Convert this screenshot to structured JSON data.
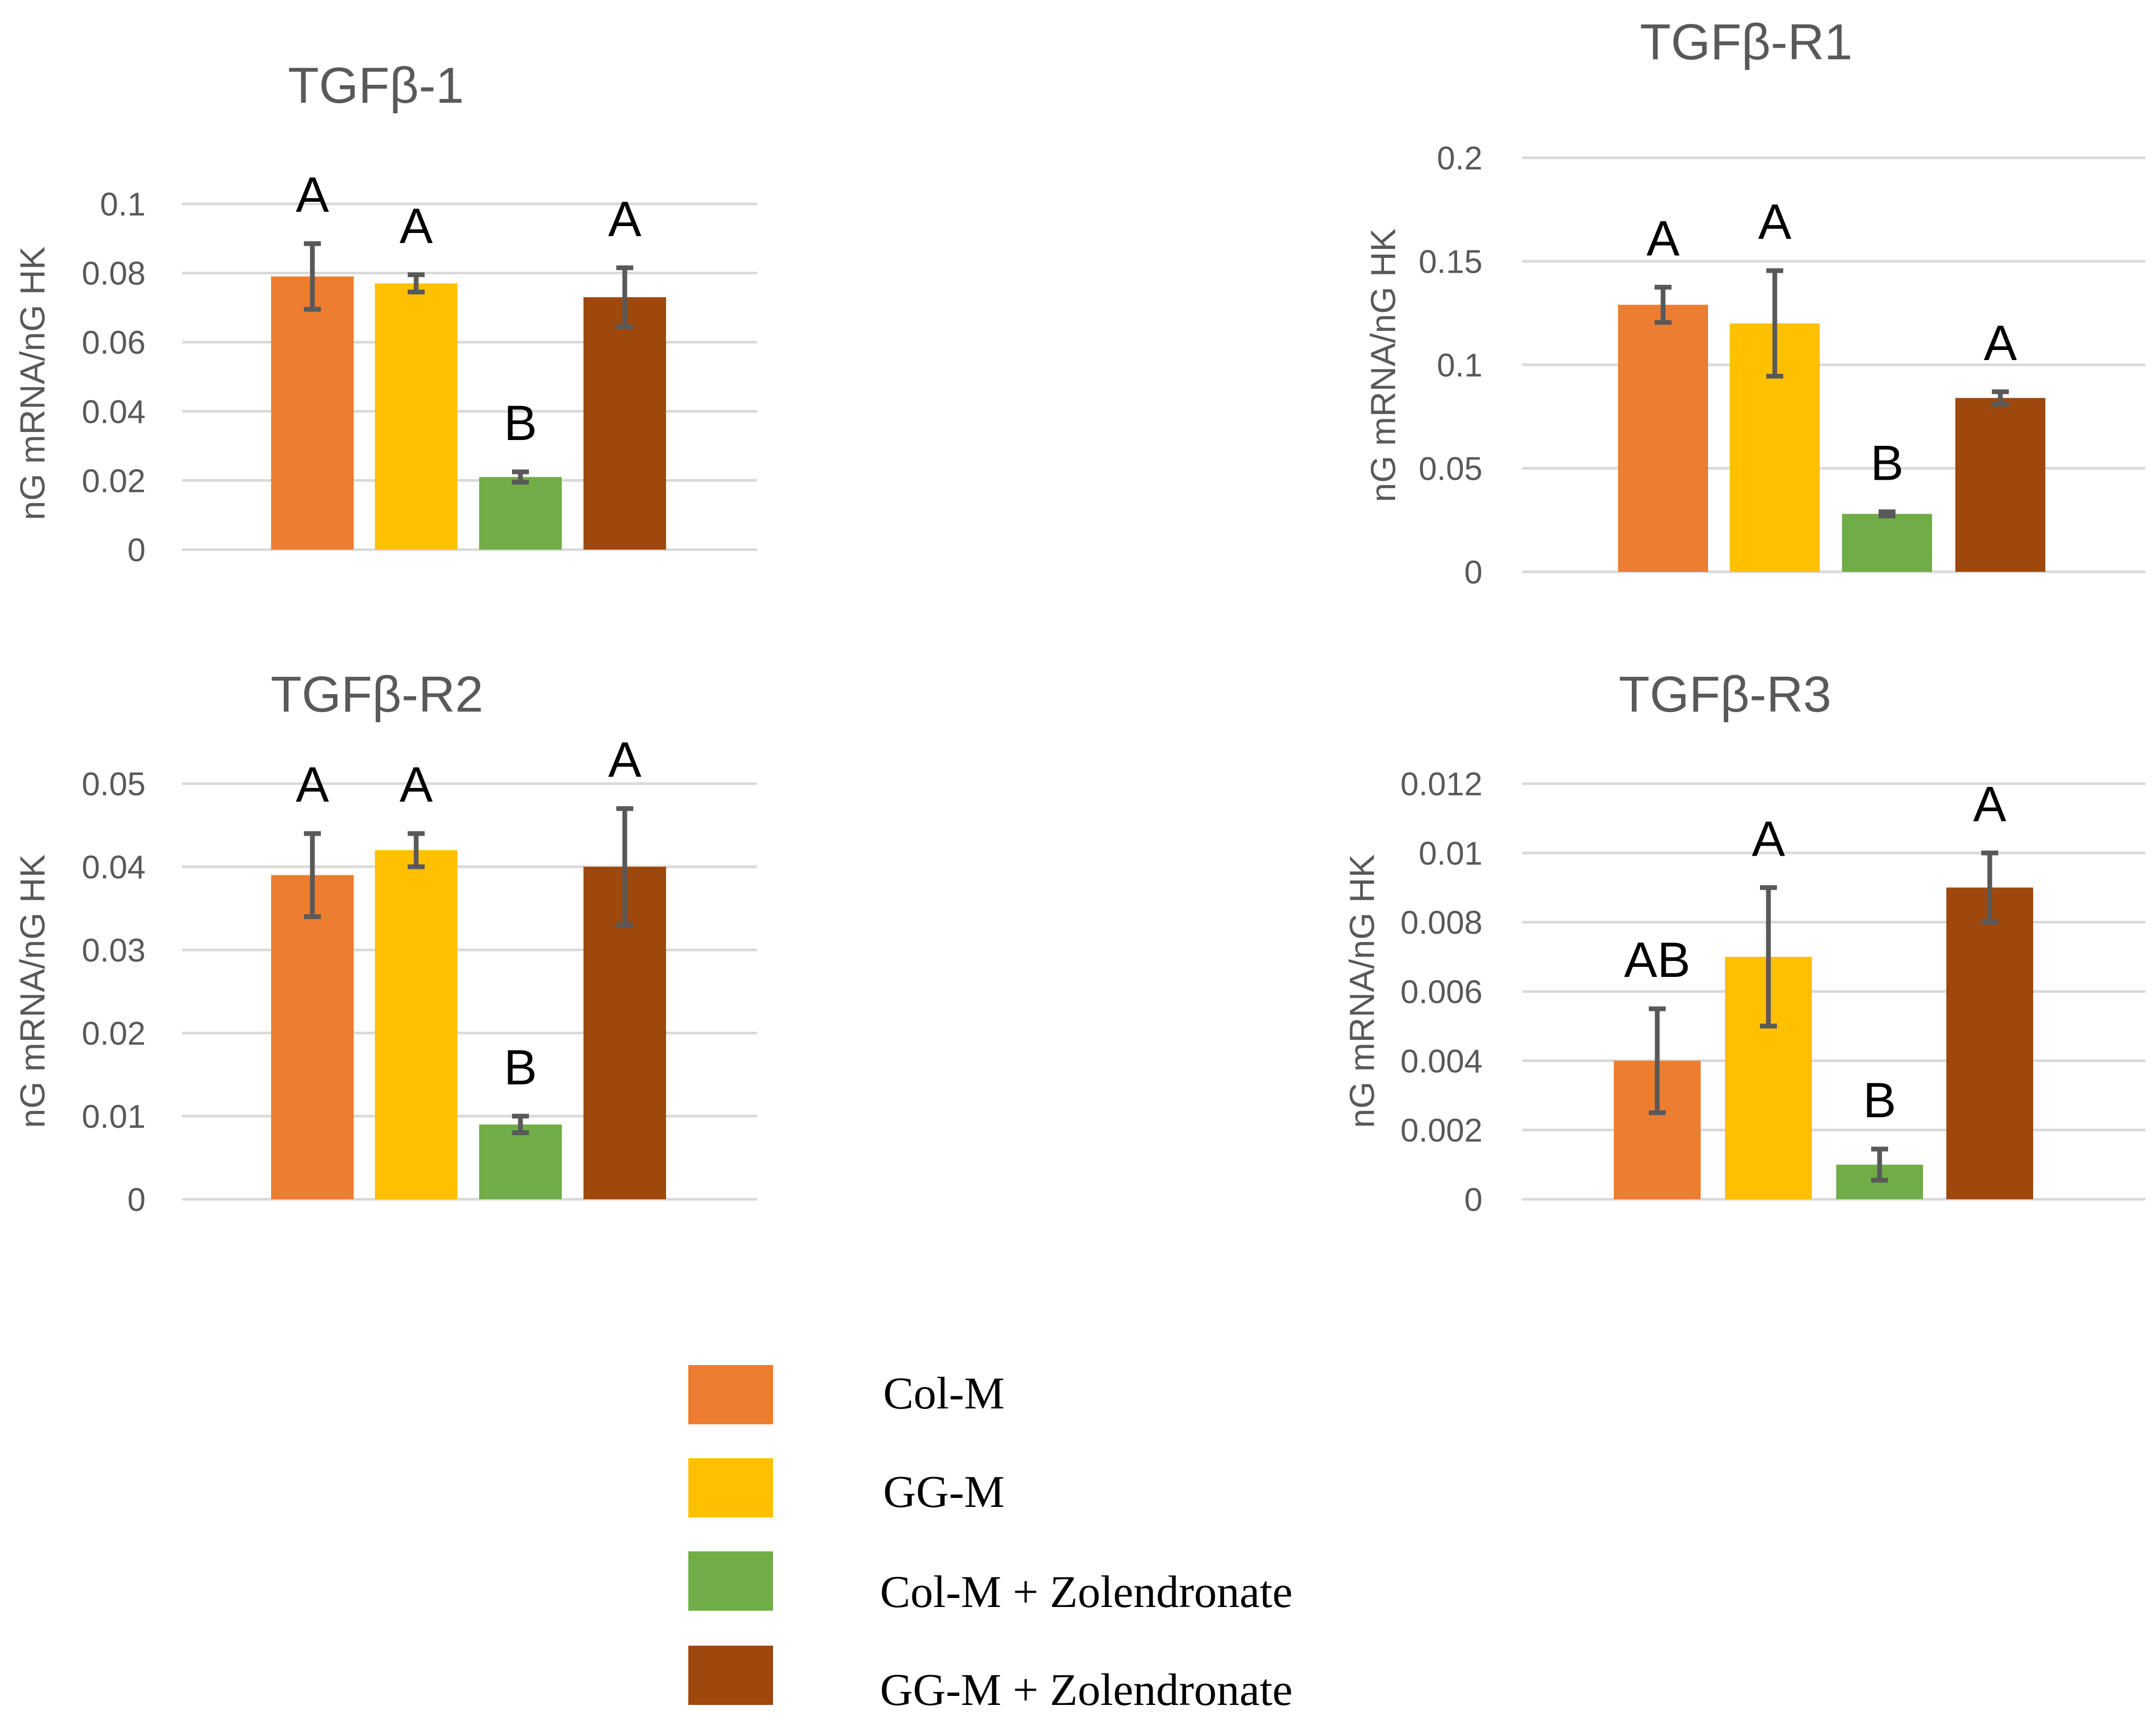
{
  "chart_data": [
    {
      "type": "bar",
      "title": "TGFβ-1",
      "ylabel": "nG mRNA/nG HK",
      "ylim": [
        0,
        0.1
      ],
      "yticks": [
        "0",
        "0.02",
        "0.04",
        "0.06",
        "0.08",
        "0.1"
      ],
      "categories": [
        "Col-M",
        "GG-M",
        "Col-M + Zolendronate",
        "GG-M + Zolendronate"
      ],
      "values": [
        0.079,
        0.077,
        0.021,
        0.073
      ],
      "errors": [
        0.0095,
        0.0025,
        0.0015,
        0.0085
      ],
      "significance": [
        "A",
        "A",
        "B",
        "A"
      ]
    },
    {
      "type": "bar",
      "title": "TGFβ-R1",
      "ylabel": "nG mRNA/nG HK",
      "ylim": [
        0,
        0.2
      ],
      "yticks": [
        "0",
        "0.05",
        "0.1",
        "0.15",
        "0.2"
      ],
      "categories": [
        "Col-M",
        "GG-M",
        "Col-M + Zolendronate",
        "GG-M + Zolendronate"
      ],
      "values": [
        0.129,
        0.12,
        0.028,
        0.084
      ],
      "errors": [
        0.0085,
        0.0255,
        0.001,
        0.003
      ],
      "significance": [
        "A",
        "A",
        "B",
        "A"
      ]
    },
    {
      "type": "bar",
      "title": "TGFβ-R2",
      "ylabel": "nG mRNA/nG HK",
      "ylim": [
        0,
        0.05
      ],
      "yticks": [
        "0",
        "0.01",
        "0.02",
        "0.03",
        "0.04",
        "0.05"
      ],
      "categories": [
        "Col-M",
        "GG-M",
        "Col-M + Zolendronate",
        "GG-M + Zolendronate"
      ],
      "values": [
        0.039,
        0.042,
        0.009,
        0.04
      ],
      "errors": [
        0.005,
        0.002,
        0.001,
        0.007
      ],
      "significance": [
        "A",
        "A",
        "B",
        "A"
      ]
    },
    {
      "type": "bar",
      "title": "TGFβ-R3",
      "ylabel": "nG mRNA/nG HK",
      "ylim": [
        0,
        0.012
      ],
      "yticks": [
        "0",
        "0.002",
        "0.004",
        "0.006",
        "0.008",
        "0.01",
        "0.012"
      ],
      "categories": [
        "Col-M",
        "GG-M",
        "Col-M + Zolendronate",
        "GG-M + Zolendronate"
      ],
      "values": [
        0.004,
        0.007,
        0.001,
        0.009
      ],
      "errors": [
        0.0015,
        0.002,
        0.00045,
        0.001
      ],
      "significance": [
        "AB",
        "A",
        "B",
        "A"
      ]
    }
  ],
  "legend": [
    {
      "label": "Col-M",
      "color": "#ED7D31"
    },
    {
      "label": "GG-M",
      "color": "#FFC000"
    },
    {
      "label": "Col-M + Zolendronate",
      "color": "#70AD47"
    },
    {
      "label": "GG-M + Zolendronate",
      "color": "#9E480E"
    }
  ]
}
